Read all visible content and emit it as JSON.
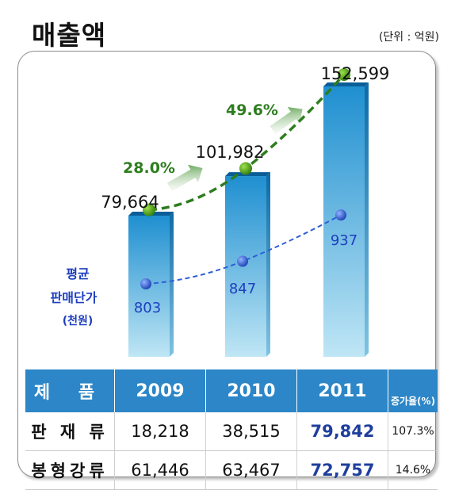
{
  "title": "매출액",
  "unit": "(단위 : 억원)",
  "chart_data": {
    "type": "bar",
    "categories": [
      "2009",
      "2010",
      "2011"
    ],
    "series": [
      {
        "values": [
          79664,
          101982,
          152599
        ]
      },
      {
        "name": "평균 판매단가 (천원)",
        "values": [
          803,
          847,
          937
        ]
      }
    ],
    "growth_labels": [
      "28.0%",
      "49.6%"
    ],
    "value_labels": [
      "79,664",
      "101,982",
      "152,599"
    ],
    "price_labels": [
      "803",
      "847",
      "937"
    ],
    "price_legend": [
      "평균",
      "판매단가",
      "(천원)"
    ],
    "colors": {
      "bar": "#2b9fd6",
      "sales_line": "#2e7d1f",
      "price_line": "#2f5fd6",
      "growth_text": "#2e7d1f"
    }
  },
  "table": {
    "headers": [
      "제 품",
      "2009",
      "2010",
      "2011",
      "증가율(%)"
    ],
    "rows": [
      [
        "판 재 류",
        "18,218",
        "38,515",
        "79,842",
        "107.3%"
      ],
      [
        "봉형강류",
        "61,446",
        "63,467",
        "72,757",
        "14.6%"
      ]
    ]
  }
}
